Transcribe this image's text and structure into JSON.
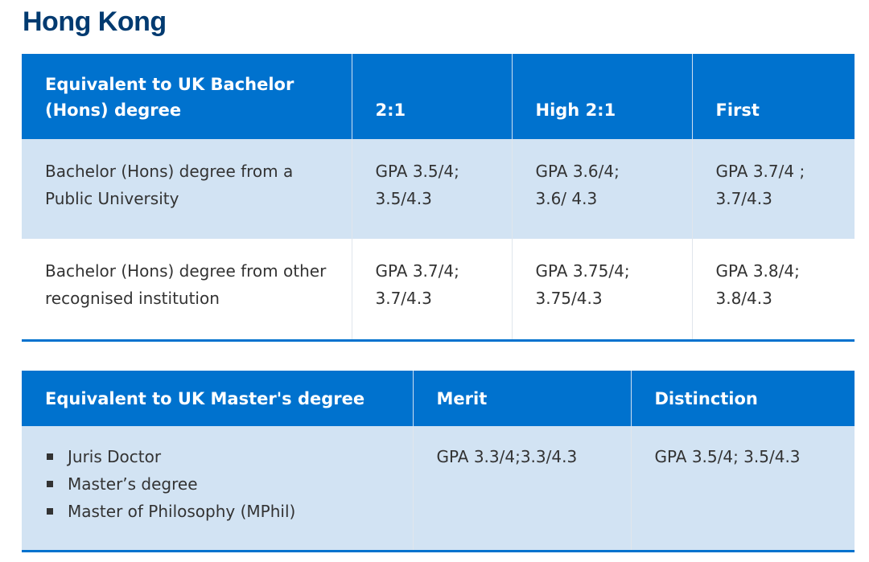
{
  "region_title": "Hong Kong",
  "bachelor_table": {
    "headers": [
      "Equivalent to UK Bachelor (Hons) degree",
      "2:1",
      "High 2:1",
      "First"
    ],
    "rows": [
      {
        "label": "Bachelor (Hons) degree from a Public University",
        "two_one": [
          "GPA 3.5/4;",
          "3.5/4.3"
        ],
        "high_two_one": [
          "GPA 3.6/4;",
          "3.6/ 4.3"
        ],
        "first": [
          "GPA 3.7/4 ;",
          "3.7/4.3"
        ]
      },
      {
        "label": "Bachelor (Hons) degree from other recognised institution",
        "two_one": [
          "GPA 3.7/4;",
          "3.7/4.3"
        ],
        "high_two_one": [
          "GPA 3.75/4;",
          "3.75/4.3"
        ],
        "first": [
          "GPA 3.8/4;",
          "3.8/4.3"
        ]
      }
    ]
  },
  "master_table": {
    "headers": [
      "Equivalent to UK Master's degree",
      "Merit",
      "Distinction"
    ],
    "qualifications": [
      "Juris Doctor",
      "Master’s degree",
      "Master of Philosophy (MPhil)"
    ],
    "merit": "GPA 3.3/4;3.3/4.3",
    "distinction": "GPA 3.5/4; 3.5/4.3"
  },
  "colors": {
    "heading": "#003a70",
    "header_bg": "#0072ce",
    "shaded_row": "#d2e3f3",
    "text": "#333333"
  }
}
